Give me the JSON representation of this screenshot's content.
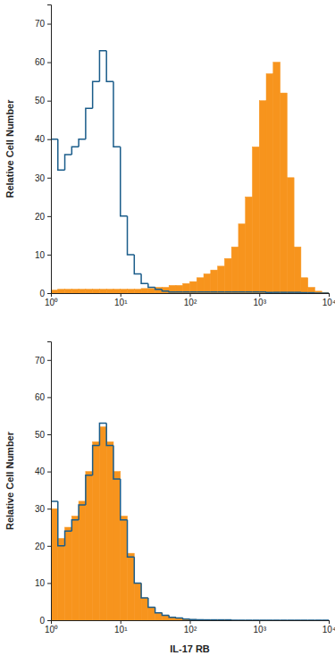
{
  "chart_data": [
    {
      "type": "histogram",
      "y_label": "Relative Cell Number",
      "log": "x",
      "bins": [
        1,
        1.259,
        1.585,
        1.995,
        2.512,
        3.162,
        3.981,
        5.012,
        6.31,
        7.943,
        10,
        12.59,
        15.85,
        19.95,
        25.12,
        31.62,
        39.81,
        50.12,
        63.1,
        79.43,
        100,
        125.9,
        158.5,
        199.5,
        251.2,
        316.2,
        398.1,
        501.2,
        631,
        794.3,
        1000,
        1259,
        1585,
        1995,
        2512,
        3162,
        3981,
        5012,
        6310,
        7943,
        10000
      ],
      "series": [
        {
          "type": "bar",
          "color": "#f7941d",
          "values": [
            0.8,
            1,
            1,
            1,
            1,
            1,
            1,
            1,
            1,
            1,
            1,
            1,
            1,
            1.2,
            1.2,
            1.5,
            1.5,
            2,
            2,
            2.5,
            3,
            4,
            5,
            6,
            7,
            9,
            12,
            18,
            25,
            38,
            50,
            57,
            60,
            52,
            30,
            12,
            4,
            1.5,
            0.5,
            0.2
          ]
        },
        {
          "type": "step",
          "color": "#1a5c8a",
          "values": [
            40,
            32,
            36,
            38,
            40,
            48,
            55,
            63,
            55,
            38,
            20,
            10,
            5,
            2.5,
            1.5,
            1,
            0.5,
            0.3,
            0.3,
            0.3,
            0.3,
            0.3,
            0.3,
            0.3,
            0.3,
            0.3,
            0.3,
            0.3,
            0.3,
            0.3,
            0.3,
            0.2,
            0.2,
            0.2,
            0.2,
            0.2,
            0.1,
            0.1,
            0,
            0
          ]
        }
      ],
      "xlim": [
        1,
        10000
      ],
      "xticks": [
        {
          "value": 1,
          "label": "10⁰"
        },
        {
          "value": 10,
          "label": "10¹"
        },
        {
          "value": 100,
          "label": "10²"
        },
        {
          "value": 1000,
          "label": "10³"
        },
        {
          "value": 10000,
          "label": "10⁴"
        }
      ],
      "ylim": [
        0,
        75
      ],
      "yticks": [
        0,
        10,
        20,
        30,
        40,
        50,
        60,
        70
      ]
    },
    {
      "type": "histogram",
      "y_label": "Relative Cell Number",
      "x_label": "IL-17 RB",
      "log": "x",
      "bins": [
        1,
        1.259,
        1.585,
        1.995,
        2.512,
        3.162,
        3.981,
        5.012,
        6.31,
        7.943,
        10,
        12.59,
        15.85,
        19.95,
        25.12,
        31.62,
        39.81,
        50.12,
        63.1,
        79.43,
        100,
        125.9,
        158.5,
        199.5,
        251.2,
        316.2,
        398.1,
        501.2,
        631,
        794.3,
        1000,
        1259,
        1585,
        1995,
        2512,
        3162,
        3981,
        5012,
        6310,
        7943,
        10000
      ],
      "series": [
        {
          "type": "bar",
          "color": "#f7941d",
          "values": [
            30,
            22,
            25,
            28,
            32,
            40,
            48,
            52,
            48,
            40,
            28,
            18,
            10,
            6,
            3.5,
            2,
            1.2,
            0.8,
            0.5,
            0.3,
            0.2,
            0.1,
            0.1,
            0.1,
            0.1,
            0.1,
            0,
            0,
            0,
            0,
            0,
            0,
            0,
            0,
            0,
            0,
            0,
            0,
            0,
            0
          ]
        },
        {
          "type": "step",
          "color": "#1a5c8a",
          "values": [
            32,
            20,
            24,
            27,
            31,
            39,
            47,
            53,
            47,
            38,
            27,
            17,
            10,
            6,
            3.5,
            2,
            1.3,
            0.8,
            0.6,
            0.3,
            0.2,
            0.1,
            0.1,
            0.1,
            0.1,
            0.1,
            0,
            0,
            0,
            0,
            0,
            0,
            0,
            0,
            0,
            0,
            0,
            0,
            0,
            0
          ]
        }
      ],
      "xlim": [
        1,
        10000
      ],
      "xticks": [
        {
          "value": 1,
          "label": "10⁰"
        },
        {
          "value": 10,
          "label": "10¹"
        },
        {
          "value": 100,
          "label": "10²"
        },
        {
          "value": 1000,
          "label": "10³"
        },
        {
          "value": 10000,
          "label": "10⁴"
        }
      ],
      "ylim": [
        0,
        75
      ],
      "yticks": [
        0,
        10,
        20,
        30,
        40,
        50,
        60,
        70
      ]
    }
  ]
}
